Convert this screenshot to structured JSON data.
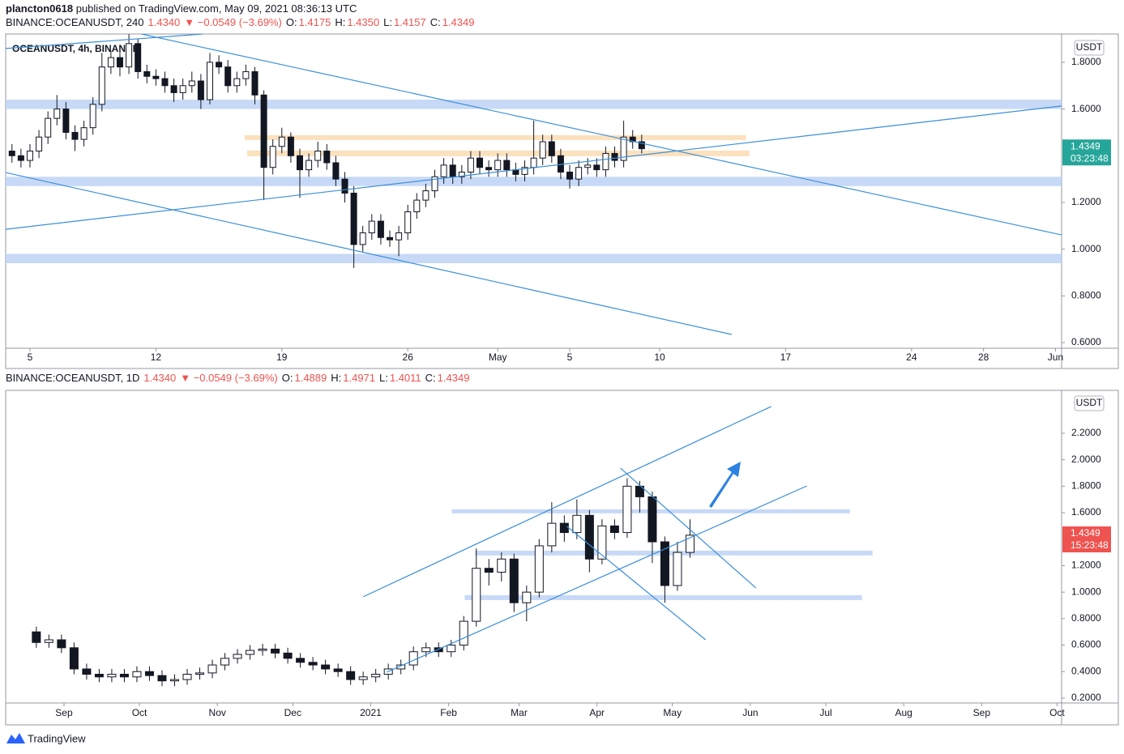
{
  "header": {
    "author": "plancton0618",
    "published": "published on TradingView.com, May 09, 2021 08:36:13 UTC"
  },
  "footer": {
    "brand": "TradingView"
  },
  "chart_data": [
    {
      "type": "candlestick",
      "header": {
        "symbol": "BINANCE:OCEANUSDT, 240",
        "last": "1.4340",
        "change": "▼ −0.0549 (−3.69%)",
        "ohlc": [
          {
            "label": "O:",
            "value": "1.4175"
          },
          {
            "label": "H:",
            "value": "1.4350"
          },
          {
            "label": "L:",
            "value": "1.4157"
          },
          {
            "label": "C:",
            "value": "1.4349"
          }
        ]
      },
      "legend_text": "OCEANUSDT, 4h, BINANCE",
      "currency": "USDT",
      "last_price": 1.4349,
      "countdown": "03:23:48",
      "price_label_color": "#26a69a",
      "up_color": "#ffffff",
      "down_color": "#131722",
      "wick_color": "#131722",
      "x": [
        4,
        4.5,
        5,
        5.5,
        6,
        6.5,
        7,
        7.5,
        8,
        8.5,
        9,
        9.5,
        10,
        10.5,
        11,
        11.5,
        12,
        12.5,
        13,
        13.5,
        14,
        14.5,
        15,
        15.5,
        16,
        16.5,
        17,
        17.5,
        18,
        18.5,
        19,
        19.5,
        20,
        20.5,
        21,
        21.5,
        22,
        22.5,
        23,
        23.5,
        24,
        24.5,
        25,
        25.5,
        26,
        26.5,
        27,
        27.5,
        28,
        28.5,
        29,
        29.5,
        30,
        30.5,
        31,
        31.5,
        32,
        32.5,
        33,
        33.5,
        34,
        34.5,
        35,
        35.5,
        36,
        36.5,
        37,
        37.5,
        38,
        38.5,
        39
      ],
      "open": [
        1.42,
        1.4,
        1.38,
        1.42,
        1.48,
        1.56,
        1.6,
        1.5,
        1.47,
        1.52,
        1.62,
        1.78,
        1.82,
        1.78,
        1.88,
        1.76,
        1.74,
        1.73,
        1.7,
        1.67,
        1.7,
        1.72,
        1.64,
        1.8,
        1.78,
        1.7,
        1.73,
        1.76,
        1.66,
        1.35,
        1.44,
        1.48,
        1.4,
        1.34,
        1.38,
        1.42,
        1.37,
        1.3,
        1.24,
        1.02,
        1.07,
        1.12,
        1.05,
        1.04,
        1.07,
        1.16,
        1.21,
        1.25,
        1.31,
        1.36,
        1.31,
        1.33,
        1.39,
        1.35,
        1.34,
        1.38,
        1.34,
        1.32,
        1.35,
        1.39,
        1.46,
        1.4,
        1.33,
        1.3,
        1.35,
        1.36,
        1.34,
        1.41,
        1.38,
        1.48,
        1.46
      ],
      "high": [
        1.45,
        1.43,
        1.45,
        1.51,
        1.59,
        1.66,
        1.63,
        1.53,
        1.55,
        1.65,
        1.84,
        1.85,
        1.85,
        1.92,
        1.9,
        1.79,
        1.77,
        1.76,
        1.73,
        1.73,
        1.76,
        1.75,
        1.84,
        1.83,
        1.81,
        1.76,
        1.79,
        1.78,
        1.68,
        1.47,
        1.52,
        1.5,
        1.43,
        1.41,
        1.46,
        1.45,
        1.4,
        1.33,
        1.27,
        1.1,
        1.15,
        1.15,
        1.08,
        1.1,
        1.19,
        1.24,
        1.28,
        1.34,
        1.39,
        1.39,
        1.36,
        1.42,
        1.42,
        1.38,
        1.41,
        1.41,
        1.37,
        1.38,
        1.55,
        1.49,
        1.49,
        1.43,
        1.36,
        1.38,
        1.39,
        1.39,
        1.44,
        1.44,
        1.55,
        1.51,
        1.49
      ],
      "low": [
        1.37,
        1.35,
        1.35,
        1.39,
        1.45,
        1.53,
        1.47,
        1.42,
        1.44,
        1.49,
        1.59,
        1.75,
        1.74,
        1.75,
        1.73,
        1.71,
        1.7,
        1.67,
        1.63,
        1.64,
        1.67,
        1.6,
        1.62,
        1.75,
        1.67,
        1.67,
        1.7,
        1.62,
        1.21,
        1.32,
        1.41,
        1.37,
        1.22,
        1.31,
        1.35,
        1.34,
        1.27,
        1.2,
        0.92,
        0.99,
        1.04,
        1.02,
        1.01,
        0.97,
        1.04,
        1.13,
        1.18,
        1.22,
        1.28,
        1.28,
        1.28,
        1.3,
        1.32,
        1.31,
        1.31,
        1.31,
        1.29,
        1.29,
        1.32,
        1.36,
        1.37,
        1.3,
        1.26,
        1.27,
        1.32,
        1.31,
        1.31,
        1.35,
        1.35,
        1.43,
        1.41
      ],
      "close": [
        1.4,
        1.38,
        1.42,
        1.48,
        1.56,
        1.6,
        1.5,
        1.47,
        1.52,
        1.62,
        1.78,
        1.82,
        1.78,
        1.88,
        1.76,
        1.74,
        1.73,
        1.7,
        1.67,
        1.7,
        1.72,
        1.64,
        1.8,
        1.78,
        1.7,
        1.73,
        1.76,
        1.66,
        1.35,
        1.44,
        1.48,
        1.4,
        1.34,
        1.38,
        1.42,
        1.37,
        1.3,
        1.24,
        1.02,
        1.07,
        1.12,
        1.05,
        1.04,
        1.07,
        1.16,
        1.21,
        1.25,
        1.31,
        1.36,
        1.31,
        1.33,
        1.39,
        1.35,
        1.34,
        1.38,
        1.34,
        1.32,
        1.35,
        1.39,
        1.46,
        1.4,
        1.33,
        1.3,
        1.35,
        1.36,
        1.34,
        1.41,
        1.38,
        1.48,
        1.46,
        1.43
      ],
      "zones": [
        {
          "from": 1.6,
          "to": 1.64,
          "color": "#b9cff5"
        },
        {
          "from": 1.27,
          "to": 1.31,
          "color": "#b9cff5"
        },
        {
          "from": 0.94,
          "to": 0.98,
          "color": "#b9cff5"
        },
        {
          "from": 1.467,
          "to": 1.488,
          "x_from": 16.94,
          "x_to": 44.8,
          "color": "#fbd9ae"
        },
        {
          "from": 1.398,
          "to": 1.422,
          "x_from": 17.07,
          "x_to": 45.0,
          "color": "#fbd9ae"
        }
      ],
      "trendlines_color": "#3a8fd9",
      "trendlines": [
        {
          "x": [
            11.2,
            62.34
          ],
          "y": [
            1.921,
            1.061
          ]
        },
        {
          "x": [
            3.65,
            62.34
          ],
          "y": [
            1.085,
            1.613
          ]
        },
        {
          "x": [
            3.65,
            44.0
          ],
          "y": [
            1.328,
            0.635
          ]
        },
        {
          "x": [
            3.65,
            14.6
          ],
          "y": [
            1.859,
            1.921
          ]
        }
      ],
      "xlim": [
        3.65,
        62.34
      ],
      "xticks": [
        5,
        12,
        19,
        26,
        {
          "value": 31,
          "label": "May"
        },
        {
          "value": 35,
          "label": "5"
        },
        {
          "value": 40,
          "label": "10"
        },
        {
          "value": 47,
          "label": "17"
        },
        {
          "value": 54,
          "label": "24"
        },
        {
          "value": 58,
          "label": "28"
        },
        {
          "value": 62,
          "label": "Jun"
        }
      ],
      "ylim": [
        0.576,
        1.921
      ],
      "yticks": [
        {
          "value": 0.6,
          "label": "0.6000"
        },
        {
          "value": 0.8,
          "label": "0.8000"
        },
        {
          "value": 1.0,
          "label": "1.0000"
        },
        {
          "value": 1.2,
          "label": "1.2000"
        },
        {
          "value": 1.6,
          "label": "1.6000"
        },
        {
          "value": 1.8,
          "label": "1.8000"
        }
      ]
    },
    {
      "type": "candlestick",
      "header": {
        "symbol": "BINANCE:OCEANUSDT, 1D",
        "last": "1.4340",
        "change": "▼ −0.0549 (−3.69%)",
        "ohlc": [
          {
            "label": "O:",
            "value": "1.4889"
          },
          {
            "label": "H:",
            "value": "1.4971"
          },
          {
            "label": "L:",
            "value": "1.4011"
          },
          {
            "label": "C:",
            "value": "1.4349"
          }
        ]
      },
      "currency": "USDT",
      "last_price": 1.4349,
      "countdown": "15:23:48",
      "price_label_color": "#ef5350",
      "up_color": "#ffffff",
      "down_color": "#131722",
      "wick_color": "#131722",
      "x": [
        20,
        25,
        30,
        35,
        40,
        45,
        50,
        55,
        60,
        65,
        70,
        75,
        80,
        85,
        90,
        95,
        100,
        105,
        110,
        115,
        120,
        125,
        130,
        135,
        140,
        145,
        150,
        155,
        160,
        165,
        170,
        175,
        180,
        185,
        190,
        195,
        200,
        205,
        210,
        215,
        220,
        225,
        230,
        235,
        240,
        245,
        250,
        255,
        260,
        265,
        270,
        275,
        280
      ],
      "open": [
        0.7,
        0.62,
        0.64,
        0.58,
        0.42,
        0.38,
        0.36,
        0.38,
        0.36,
        0.4,
        0.37,
        0.33,
        0.34,
        0.38,
        0.39,
        0.45,
        0.5,
        0.53,
        0.56,
        0.57,
        0.54,
        0.5,
        0.47,
        0.45,
        0.42,
        0.4,
        0.34,
        0.36,
        0.38,
        0.42,
        0.45,
        0.55,
        0.58,
        0.55,
        0.6,
        0.78,
        1.18,
        1.15,
        1.25,
        0.92,
        1.0,
        1.35,
        1.52,
        1.45,
        1.58,
        1.25,
        1.5,
        1.45,
        1.8,
        1.72,
        1.38,
        1.05,
        1.3
      ],
      "high": [
        0.74,
        0.68,
        0.68,
        0.62,
        0.46,
        0.42,
        0.42,
        0.42,
        0.44,
        0.44,
        0.41,
        0.38,
        0.42,
        0.43,
        0.49,
        0.54,
        0.57,
        0.6,
        0.61,
        0.61,
        0.58,
        0.54,
        0.51,
        0.49,
        0.46,
        0.44,
        0.4,
        0.42,
        0.46,
        0.49,
        0.59,
        0.62,
        0.62,
        0.64,
        0.82,
        1.33,
        1.25,
        1.3,
        1.29,
        1.05,
        1.4,
        1.68,
        1.58,
        1.7,
        1.62,
        1.55,
        1.55,
        1.86,
        1.84,
        1.76,
        1.42,
        1.38,
        1.55
      ],
      "low": [
        0.58,
        0.58,
        0.54,
        0.38,
        0.34,
        0.32,
        0.32,
        0.32,
        0.32,
        0.33,
        0.29,
        0.29,
        0.3,
        0.34,
        0.35,
        0.41,
        0.46,
        0.49,
        0.52,
        0.5,
        0.46,
        0.43,
        0.41,
        0.38,
        0.36,
        0.3,
        0.3,
        0.32,
        0.34,
        0.38,
        0.41,
        0.51,
        0.51,
        0.51,
        0.56,
        0.74,
        1.05,
        1.08,
        0.85,
        0.78,
        0.96,
        1.3,
        1.38,
        1.4,
        1.15,
        1.21,
        1.4,
        1.41,
        1.6,
        1.22,
        0.92,
        1.01,
        1.26
      ],
      "close": [
        0.62,
        0.64,
        0.58,
        0.42,
        0.38,
        0.36,
        0.38,
        0.36,
        0.4,
        0.37,
        0.33,
        0.34,
        0.38,
        0.39,
        0.45,
        0.5,
        0.53,
        0.56,
        0.57,
        0.54,
        0.5,
        0.47,
        0.45,
        0.42,
        0.4,
        0.34,
        0.36,
        0.38,
        0.42,
        0.45,
        0.55,
        0.58,
        0.55,
        0.6,
        0.78,
        1.18,
        1.15,
        1.25,
        0.92,
        1.0,
        1.35,
        1.52,
        1.45,
        1.58,
        1.25,
        1.5,
        1.45,
        1.8,
        1.72,
        1.38,
        1.05,
        1.3,
        1.43
      ],
      "zones": [
        {
          "from": 1.595,
          "to": 1.625,
          "x_from": 185.2,
          "x_to": 343.6,
          "color": "#b9cff5"
        },
        {
          "from": 1.277,
          "to": 1.313,
          "x_from": 194.5,
          "x_to": 352.6,
          "color": "#b9cff5"
        },
        {
          "from": 0.94,
          "to": 0.977,
          "x_from": 190.4,
          "x_to": 348.4,
          "color": "#b9cff5"
        }
      ],
      "trendlines_color": "#3a8fd9",
      "trendlines": [
        {
          "x": [
            150.0,
            312.3
          ],
          "y": [
            0.965,
            2.402
          ]
        },
        {
          "x": [
            159.4,
            326.5
          ],
          "y": [
            0.396,
            1.802
          ]
        },
        {
          "x": [
            252.3,
            306.2
          ],
          "y": [
            1.937,
            1.032
          ]
        },
        {
          "x": [
            231.0,
            286.2
          ],
          "y": [
            1.497,
            0.64
          ]
        }
      ],
      "xlim": [
        7.8,
        427.8
      ],
      "xticks": [
        {
          "value": 31,
          "label": "Sep"
        },
        {
          "value": 61,
          "label": "Oct"
        },
        {
          "value": 92,
          "label": "Nov"
        },
        {
          "value": 122,
          "label": "Dec"
        },
        {
          "value": 153,
          "label": "2021"
        },
        {
          "value": 184,
          "label": "Feb"
        },
        {
          "value": 212,
          "label": "Mar"
        },
        {
          "value": 243,
          "label": "Apr"
        },
        {
          "value": 273,
          "label": "May"
        },
        {
          "value": 304,
          "label": "Jun"
        },
        {
          "value": 334,
          "label": "Jul"
        },
        {
          "value": 365,
          "label": "Aug"
        },
        {
          "value": 396,
          "label": "Sep"
        },
        {
          "value": 426,
          "label": "Oct"
        }
      ],
      "ylim": [
        0.163,
        2.487
      ],
      "yticks": [
        {
          "value": 0.2,
          "label": "0.2000"
        },
        {
          "value": 0.4,
          "label": "0.4000"
        },
        {
          "value": 0.6,
          "label": "0.6000"
        },
        {
          "value": 0.8,
          "label": "0.8000"
        },
        {
          "value": 1.0,
          "label": "1.0000"
        },
        {
          "value": 1.2,
          "label": "1.2000"
        },
        {
          "value": 1.6,
          "label": "1.6000"
        },
        {
          "value": 1.8,
          "label": "1.8000"
        },
        {
          "value": 2.0,
          "label": "2.0000"
        },
        {
          "value": 2.2,
          "label": "2.2000"
        }
      ]
    }
  ]
}
